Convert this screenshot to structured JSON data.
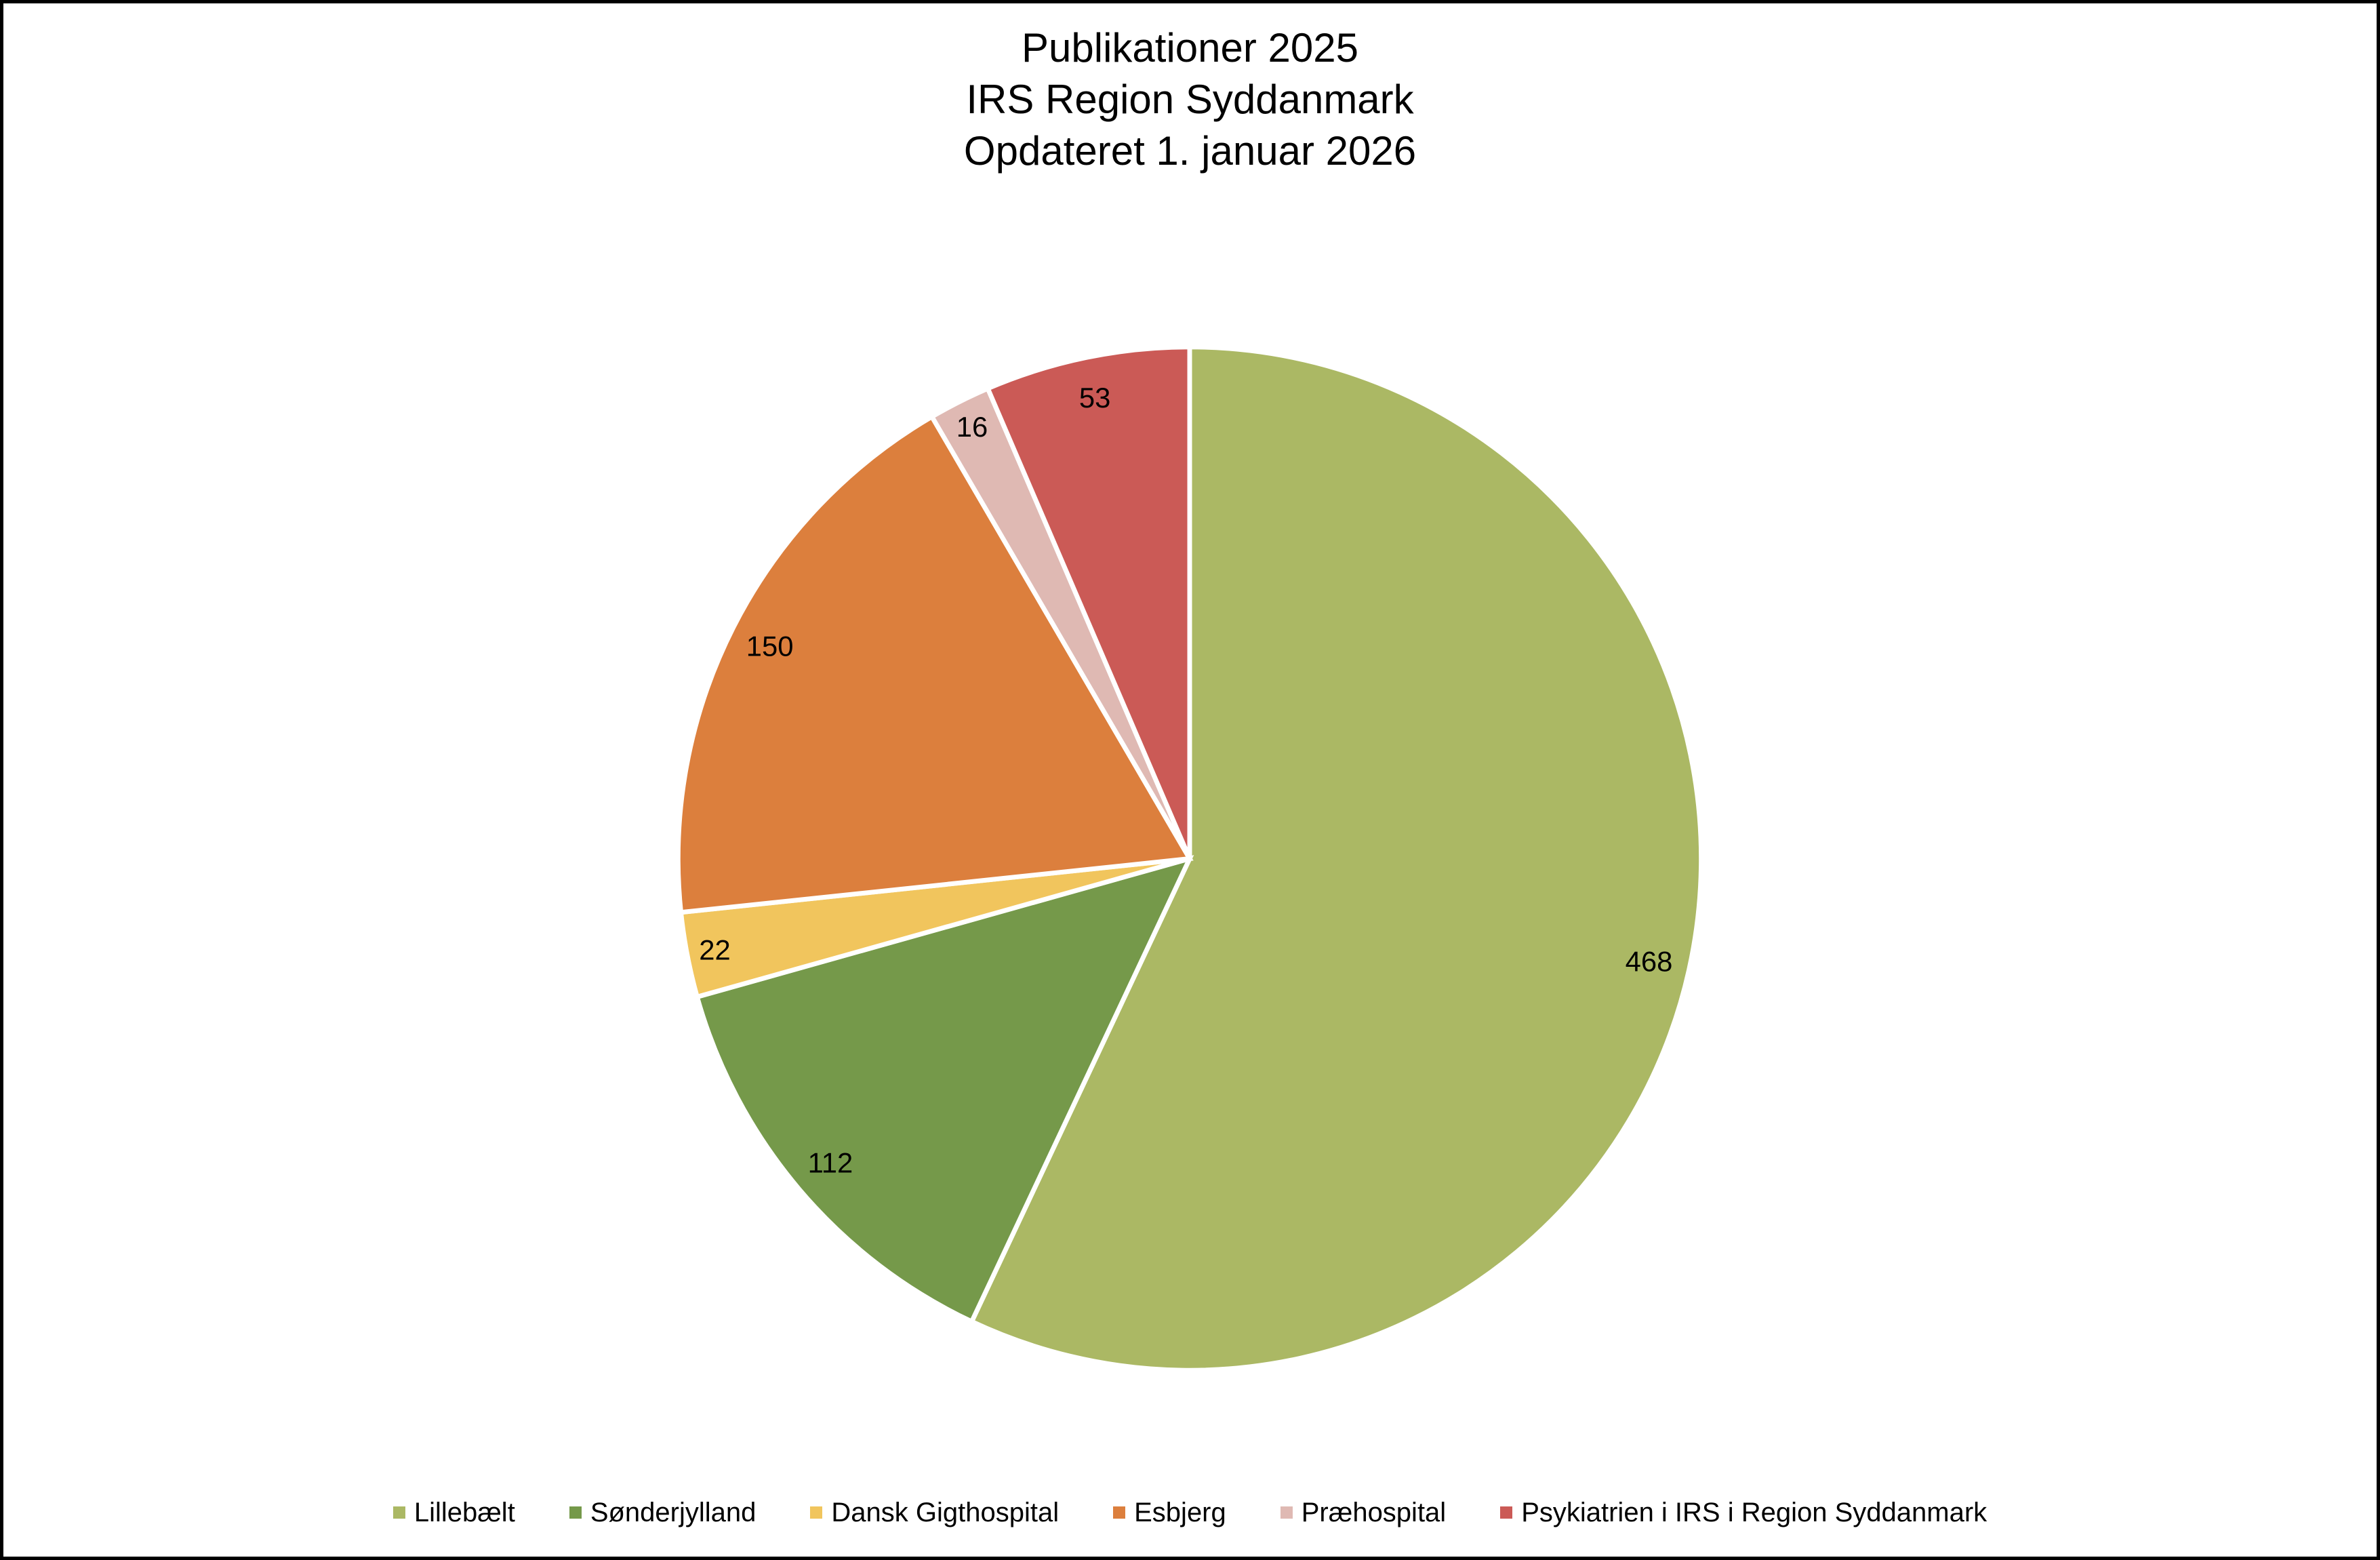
{
  "chart_data": {
    "type": "pie",
    "title_lines": [
      "Publikationer 2025",
      "IRS Region Syddanmark",
      "Opdateret 1. januar 2026"
    ],
    "categories": [
      "Lillebælt",
      "Sønderjylland",
      "Dansk Gigthospital",
      "Esbjerg",
      "Præhospital",
      "Psykiatrien i IRS i Region Syddanmark"
    ],
    "values": [
      468,
      112,
      22,
      150,
      16,
      53
    ],
    "data_labels": [
      "468",
      "112",
      "22",
      "150",
      "16",
      "53"
    ],
    "colors": [
      "#ABB864",
      "#75994A",
      "#F1C55D",
      "#DC7F3D",
      "#DFB9B3",
      "#CB5A56"
    ],
    "total": 821,
    "start_angle_deg": 0,
    "direction": "clockwise",
    "slice_border_color": "#FFFFFF",
    "label_color": "#000000",
    "legend_position": "bottom"
  },
  "frame": {
    "background": "#FFFFFF",
    "border_color": "#000000"
  }
}
